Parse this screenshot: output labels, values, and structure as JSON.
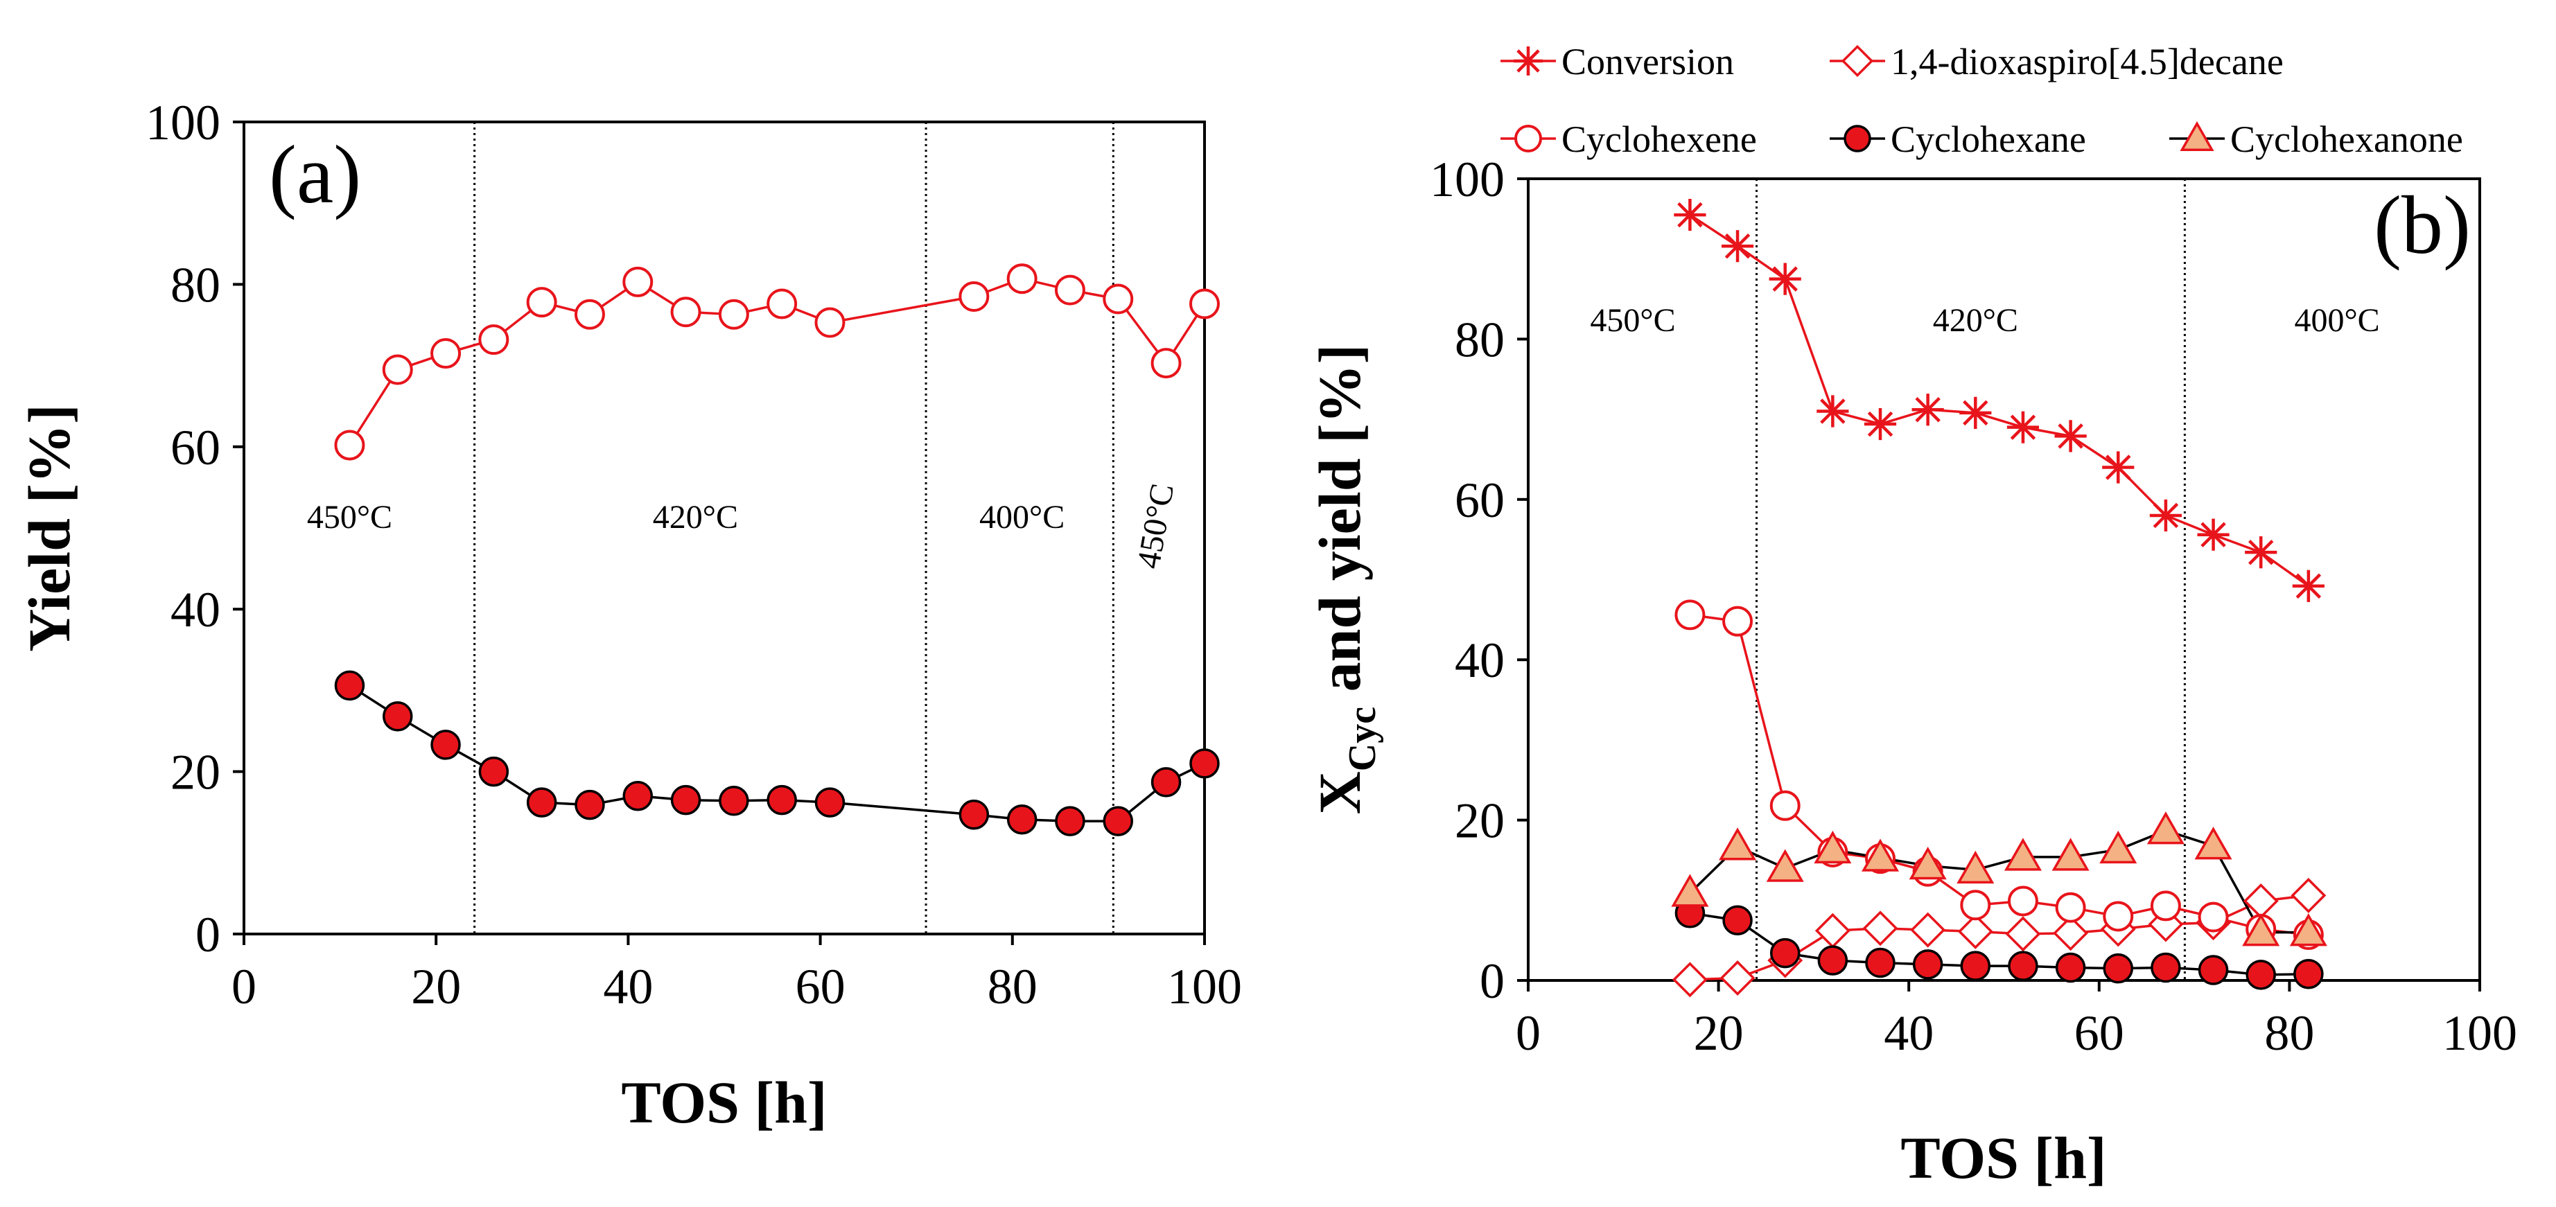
{
  "chart_data": [
    {
      "type": "scatter",
      "panel_label": "(a)",
      "xlabel": "TOS [h]",
      "ylabel": "Yield [%]",
      "xlim": [
        0,
        100
      ],
      "ylim": [
        0,
        100
      ],
      "xticks": [
        "0",
        "20",
        "40",
        "60",
        "80",
        "100"
      ],
      "yticks": [
        "0",
        "20",
        "40",
        "60",
        "80",
        "100"
      ],
      "dividers": [
        24,
        71,
        90.5
      ],
      "temperature_regions": [
        {
          "label": "450°C",
          "x": 11,
          "y": 50,
          "rotated": false
        },
        {
          "label": "420°C",
          "x": 47,
          "y": 50,
          "rotated": false
        },
        {
          "label": "400°C",
          "x": 81,
          "y": 50,
          "rotated": false
        },
        {
          "label": "450°C",
          "x": 96,
          "y": 50,
          "rotated": true
        }
      ],
      "series": [
        {
          "name": "Cyclohexene",
          "marker": "circle-open",
          "color": "#e8141b",
          "x": [
            11,
            16,
            21,
            26,
            31,
            36,
            41,
            46,
            51,
            56,
            61,
            76,
            81,
            86,
            91,
            96,
            100
          ],
          "y": [
            60.2,
            69.5,
            71.5,
            73.2,
            77.8,
            76.3,
            80.3,
            76.6,
            76.3,
            77.6,
            75.3,
            78.5,
            80.7,
            79.3,
            78.2,
            70.3,
            77.6
          ]
        },
        {
          "name": "Cyclohexane",
          "marker": "circle-filled",
          "color": "#e8141b",
          "x": [
            11,
            16,
            21,
            26,
            31,
            36,
            41,
            46,
            51,
            56,
            61,
            76,
            81,
            86,
            91,
            96,
            100
          ],
          "y": [
            30.6,
            26.8,
            23.3,
            20.0,
            16.2,
            15.9,
            17.0,
            16.5,
            16.4,
            16.5,
            16.2,
            14.7,
            14.1,
            13.9,
            13.9,
            18.7,
            21.0
          ]
        }
      ]
    },
    {
      "type": "scatter",
      "panel_label": "(b)",
      "xlabel": "TOS [h]",
      "ylabel_main": "X",
      "ylabel_sub": "Cyc",
      "ylabel_rest": " and yield [%]",
      "xlim": [
        0,
        100
      ],
      "ylim": [
        0,
        100
      ],
      "xticks": [
        "0",
        "20",
        "40",
        "60",
        "80",
        "100"
      ],
      "yticks": [
        "0",
        "20",
        "40",
        "60",
        "80",
        "100"
      ],
      "dividers": [
        24,
        69
      ],
      "temperature_regions": [
        {
          "label": "450°C",
          "x": 11,
          "y": 81
        },
        {
          "label": "420°C",
          "x": 47,
          "y": 81
        },
        {
          "label": "400°C",
          "x": 85,
          "y": 81
        }
      ],
      "series": [
        {
          "name": "Conversion",
          "marker": "star",
          "color": "#e8141b",
          "line": "#e8141b",
          "x": [
            17,
            22,
            27,
            32,
            37,
            42,
            47,
            52,
            57,
            62,
            67,
            72,
            77,
            82
          ],
          "y": [
            95.5,
            91.6,
            87.5,
            71.0,
            69.4,
            71.2,
            70.8,
            69.0,
            67.9,
            64.0,
            58.0,
            55.6,
            53.4,
            49.2
          ]
        },
        {
          "name": "1,4-dioxaspiro[4.5]decane",
          "marker": "diamond-open",
          "color": "#e8141b",
          "line": "#e8141b",
          "x": [
            17,
            22,
            27,
            32,
            37,
            42,
            47,
            52,
            57,
            62,
            67,
            72,
            77,
            82
          ],
          "y": [
            0.1,
            0.3,
            2.5,
            6.2,
            6.5,
            6.3,
            6.1,
            5.8,
            5.9,
            6.4,
            7.0,
            7.2,
            9.9,
            10.6
          ]
        },
        {
          "name": "Cyclohexene",
          "marker": "circle-open",
          "color": "#e8141b",
          "line": "#e8141b",
          "x": [
            17,
            22,
            27,
            32,
            37,
            42,
            47,
            52,
            57,
            62,
            67,
            72,
            77,
            82
          ],
          "y": [
            45.6,
            44.8,
            21.8,
            16.0,
            15.2,
            13.6,
            9.4,
            9.9,
            9.1,
            8.0,
            9.3,
            7.9,
            6.4,
            5.7
          ]
        },
        {
          "name": "Cyclohexane",
          "marker": "circle-filled",
          "color": "#e8141b",
          "line": "#000000",
          "x": [
            17,
            22,
            27,
            32,
            37,
            42,
            47,
            52,
            57,
            62,
            67,
            72,
            77,
            82
          ],
          "y": [
            8.4,
            7.5,
            3.4,
            2.5,
            2.2,
            2.0,
            1.8,
            1.8,
            1.6,
            1.5,
            1.6,
            1.3,
            0.7,
            0.8
          ]
        },
        {
          "name": "Cyclohexanone",
          "marker": "triangle",
          "color": "#f4b183",
          "edge": "#e8141b",
          "line": "#000000",
          "x": [
            17,
            22,
            27,
            32,
            37,
            42,
            47,
            52,
            57,
            62,
            67,
            72,
            77,
            82
          ],
          "y": [
            10.9,
            16.7,
            14.0,
            16.3,
            15.3,
            14.3,
            13.8,
            15.4,
            15.4,
            16.3,
            18.7,
            16.8,
            6.0,
            6.0
          ]
        }
      ]
    }
  ]
}
